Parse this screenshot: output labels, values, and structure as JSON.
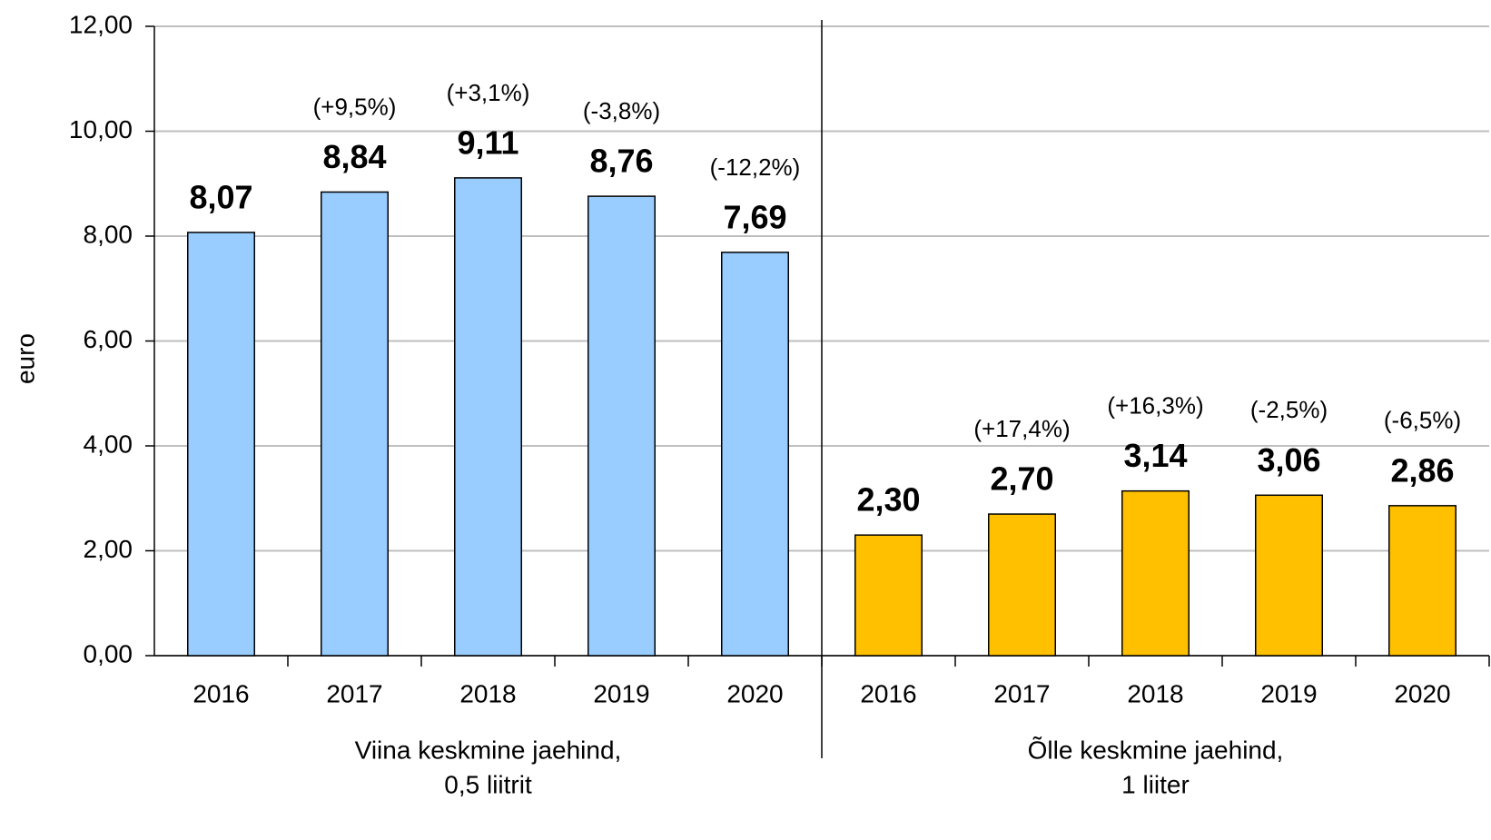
{
  "chart_data": {
    "type": "grouped-bar",
    "y_label": "euro",
    "ylim": [
      0,
      12
    ],
    "yticks": [
      {
        "value": 0,
        "label": "0,00"
      },
      {
        "value": 2,
        "label": "2,00"
      },
      {
        "value": 4,
        "label": "4,00"
      },
      {
        "value": 6,
        "label": "6,00"
      },
      {
        "value": 8,
        "label": "8,00"
      },
      {
        "value": 10,
        "label": "10,00"
      },
      {
        "value": 12,
        "label": "12,00"
      }
    ],
    "grid": true,
    "negative_color": "#ff0000",
    "series": [
      {
        "name_lines": [
          "Viina keskmine jaehind,",
          "0,5 liitrit"
        ],
        "color": "#99ccff",
        "categories": [
          "2016",
          "2017",
          "2018",
          "2019",
          "2020"
        ],
        "values": [
          8.07,
          8.84,
          9.11,
          8.76,
          7.69
        ],
        "value_labels": [
          "8,07",
          "8,84",
          "9,11",
          "8,76",
          "7,69"
        ],
        "change_labels": [
          null,
          "(+9,5%)",
          "(+3,1%)",
          "(-3,8%)",
          "(-12,2%)"
        ]
      },
      {
        "name_lines": [
          "Õlle keskmine jaehind,",
          "1 liiter"
        ],
        "color": "#ffc000",
        "categories": [
          "2016",
          "2017",
          "2018",
          "2019",
          "2020"
        ],
        "values": [
          2.3,
          2.7,
          3.14,
          3.06,
          2.86
        ],
        "value_labels": [
          "2,30",
          "2,70",
          "3,14",
          "3,06",
          "2,86"
        ],
        "change_labels": [
          null,
          "(+17,4%)",
          "(+16,3%)",
          "(-2,5%)",
          "(-6,5%)"
        ]
      }
    ]
  }
}
